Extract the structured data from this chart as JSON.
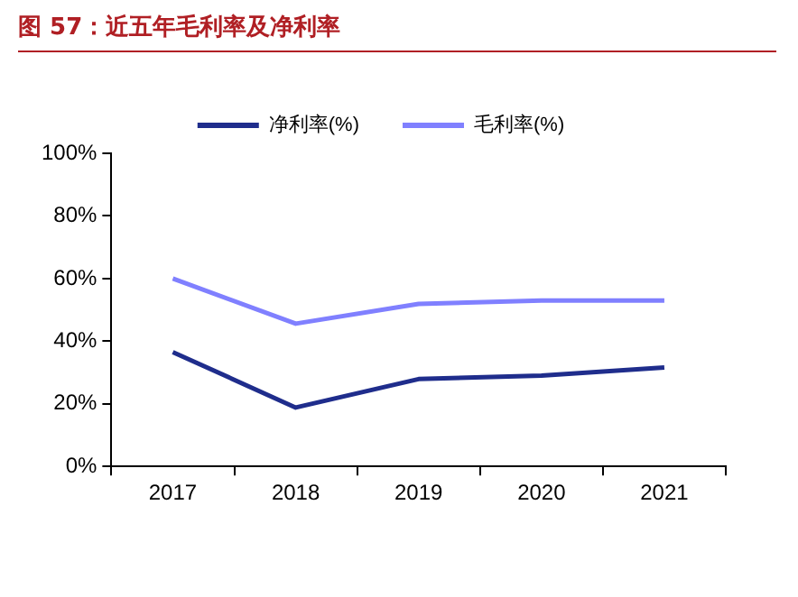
{
  "chart_data": {
    "type": "line",
    "title": "图 57：近五年毛利率及净利率",
    "categories": [
      "2017",
      "2018",
      "2019",
      "2020",
      "2021"
    ],
    "series": [
      {
        "name": "净利率(%)",
        "color": "#1f2d8c",
        "values": [
          36.5,
          18.8,
          27.9,
          29,
          31.6
        ]
      },
      {
        "name": "毛利率(%)",
        "color": "#8080ff",
        "values": [
          60,
          45.6,
          51.9,
          53,
          53
        ]
      }
    ],
    "ylim": [
      0,
      100
    ],
    "yticks": [
      {
        "value": 0,
        "label": "0%"
      },
      {
        "value": 20,
        "label": "20%"
      },
      {
        "value": 40,
        "label": "40%"
      },
      {
        "value": 60,
        "label": "60%"
      },
      {
        "value": 80,
        "label": "80%"
      },
      {
        "value": 100,
        "label": "100%"
      }
    ],
    "grid": false,
    "legend": "top",
    "marker": "none",
    "line_style": "solid"
  }
}
